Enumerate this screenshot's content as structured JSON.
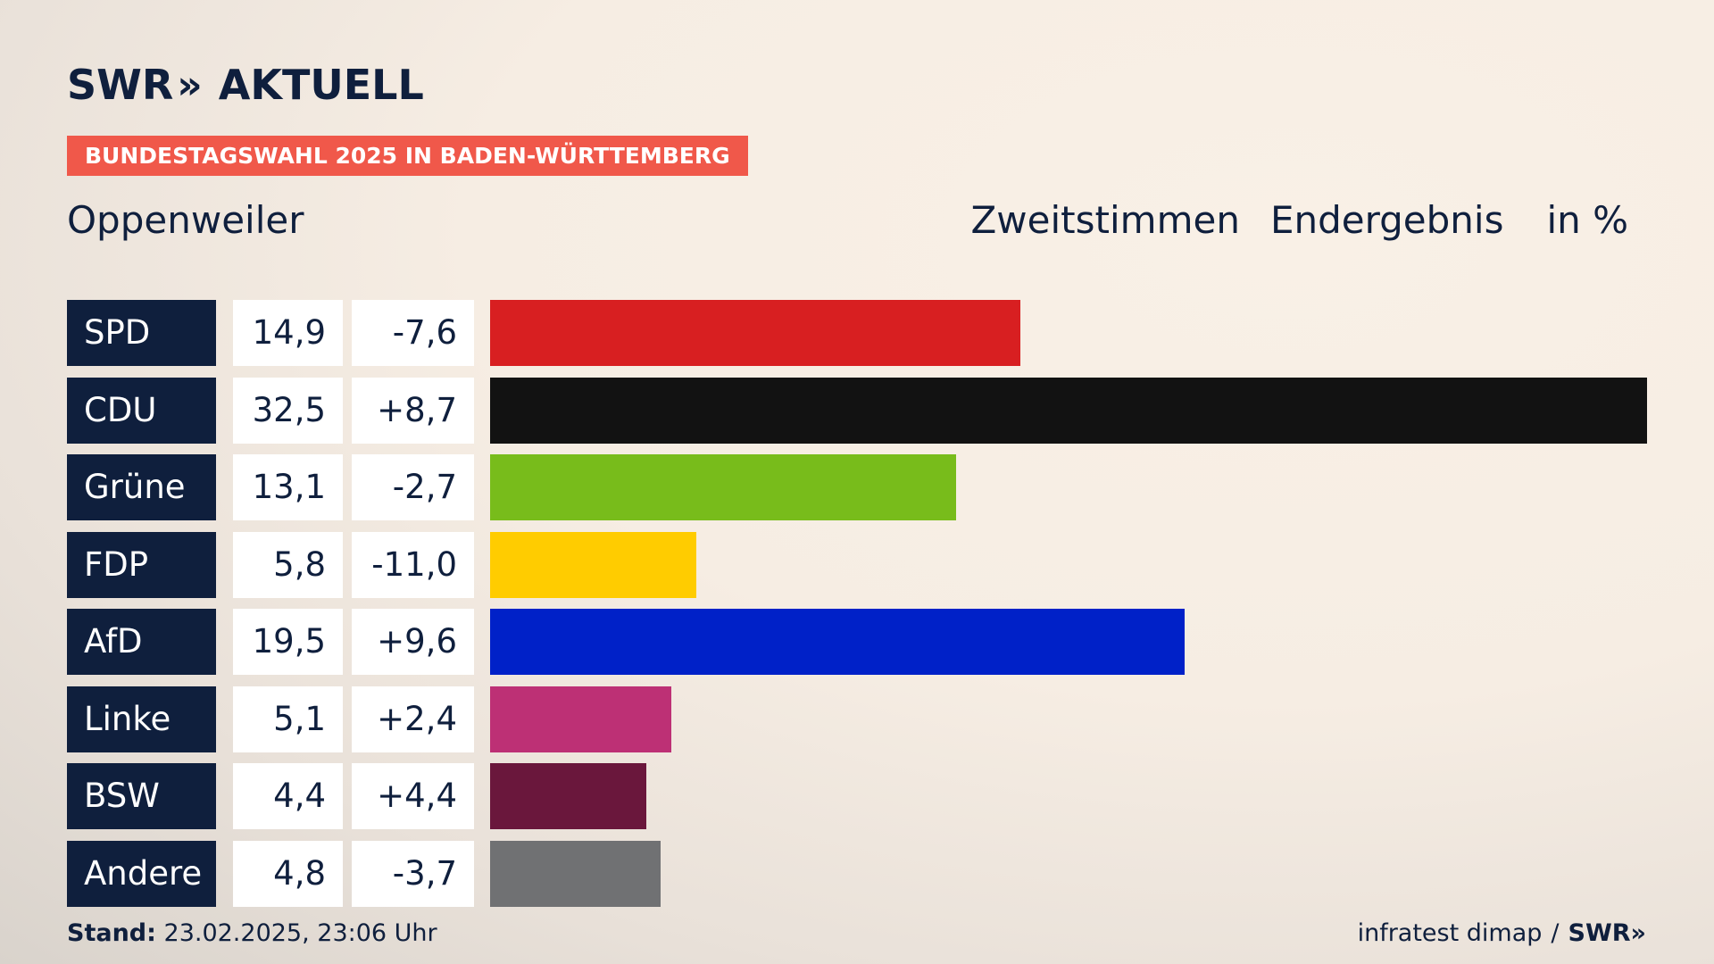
{
  "logo": {
    "brand": "SWR",
    "chevrons": "»",
    "product": "AKTUELL"
  },
  "banner": "BUNDESTAGSWAHL 2025 IN BADEN-WÜRTTEMBERG",
  "location": "Oppenweiler",
  "header": {
    "vote_type": "Zweitstimmen",
    "status": "Endergebnis",
    "unit": "in %"
  },
  "footer": {
    "stand_label": "Stand:",
    "stand_value": "23.02.2025, 23:06 Uhr",
    "source": "infratest dimap",
    "separator": "/",
    "source_brand": "SWR",
    "source_chevrons": "»"
  },
  "chart_data": {
    "type": "bar",
    "orientation": "horizontal",
    "categories": [
      "SPD",
      "CDU",
      "Grüne",
      "FDP",
      "AfD",
      "Linke",
      "BSW",
      "Andere"
    ],
    "values": [
      14.9,
      32.5,
      13.1,
      5.8,
      19.5,
      5.1,
      4.4,
      4.8
    ],
    "value_labels": [
      "14,9",
      "32,5",
      "13,1",
      "5,8",
      "19,5",
      "5,1",
      "4,4",
      "4,8"
    ],
    "diffs": [
      -7.6,
      8.7,
      -2.7,
      -11.0,
      9.6,
      2.4,
      4.4,
      -3.7
    ],
    "diff_labels": [
      "-7,6",
      "+8,7",
      "-2,7",
      "-11,0",
      "+9,6",
      "+2,4",
      "+4,4",
      "-3,7"
    ],
    "colors": [
      "#d81f21",
      "#121212",
      "#78bc1b",
      "#ffcc00",
      "#0021c8",
      "#bd3075",
      "#6a173c",
      "#707173"
    ],
    "xlim": [
      0,
      32.5
    ],
    "grid": false
  }
}
